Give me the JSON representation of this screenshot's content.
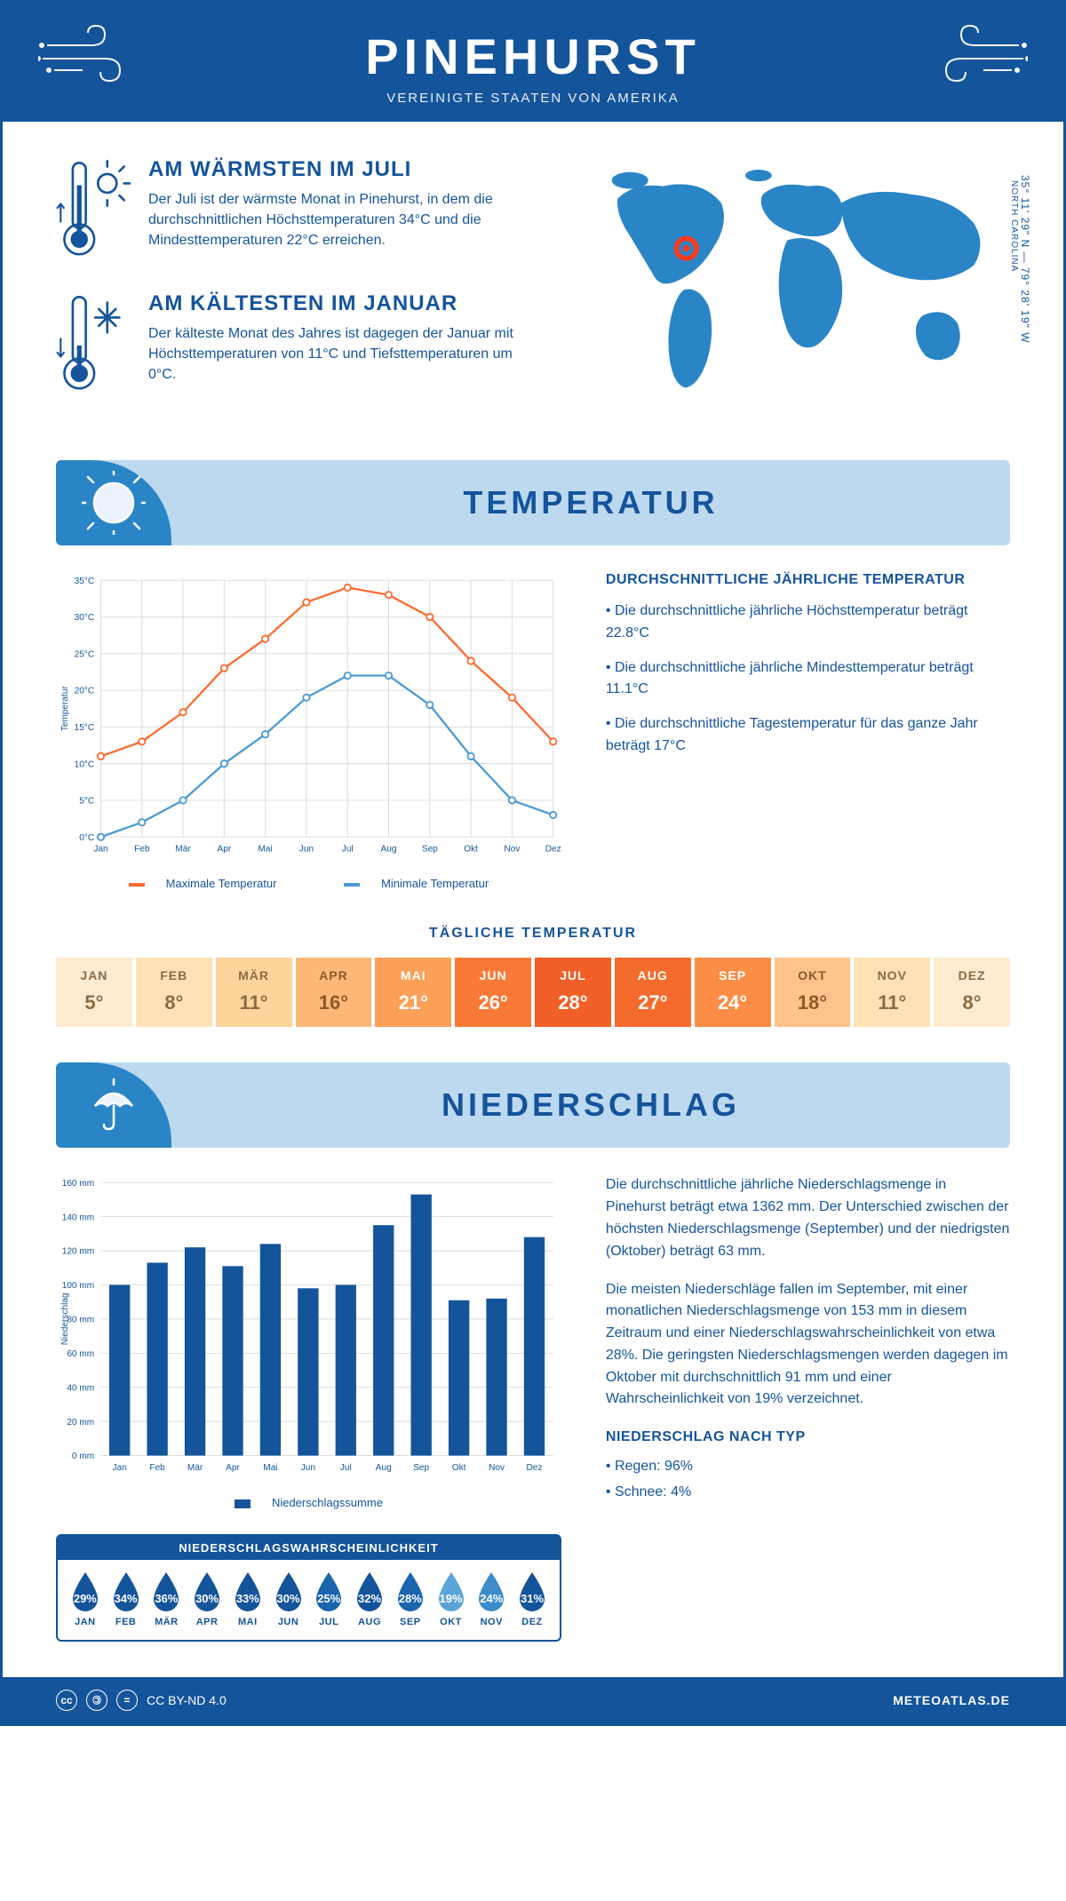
{
  "header": {
    "title": "PINEHURST",
    "subtitle": "VEREINIGTE STAATEN VON AMERIKA"
  },
  "colors": {
    "primary": "#14549b",
    "band_bg": "#bdd9f0",
    "band_icon_bg": "#2a85c6",
    "max_line": "#ff6a2f",
    "min_line": "#4a9ad6",
    "grid": "#d9d9d9",
    "axis_text": "#14549b"
  },
  "intro": {
    "warm": {
      "title": "AM WÄRMSTEN IM JULI",
      "text": "Der Juli ist der wärmste Monat in Pinehurst, in dem die durchschnittlichen Höchsttemperaturen 34°C und die Mindesttemperaturen 22°C erreichen."
    },
    "cold": {
      "title": "AM KÄLTESTEN IM JANUAR",
      "text": "Der kälteste Monat des Jahres ist dagegen der Januar mit Höchsttemperaturen von 11°C und Tiefsttemperaturen um 0°C."
    },
    "coords": "35° 11' 29\" N — 79° 28' 19\" W",
    "region": "NORTH CAROLINA"
  },
  "temperature_section": {
    "band_title": "TEMPERATUR",
    "desc_title": "DURCHSCHNITTLICHE JÄHRLICHE TEMPERATUR",
    "desc_1": "• Die durchschnittliche jährliche Höchsttemperatur beträgt 22.8°C",
    "desc_2": "• Die durchschnittliche jährliche Mindesttemperatur beträgt 11.1°C",
    "desc_3": "• Die durchschnittliche Tagestemperatur für das ganze Jahr beträgt 17°C",
    "chart": {
      "months": [
        "Jan",
        "Feb",
        "Mär",
        "Apr",
        "Mai",
        "Jun",
        "Jul",
        "Aug",
        "Sep",
        "Okt",
        "Nov",
        "Dez"
      ],
      "max": [
        11,
        13,
        17,
        23,
        27,
        32,
        34,
        33,
        30,
        24,
        19,
        13
      ],
      "min": [
        0,
        2,
        5,
        10,
        14,
        19,
        22,
        22,
        18,
        11,
        5,
        3
      ],
      "ylabel": "Temperatur",
      "ymin": 0,
      "ymax": 35,
      "ystep": 5,
      "legend_max": "Maximale Temperatur",
      "legend_min": "Minimale Temperatur"
    },
    "daily_title": "TÄGLICHE TEMPERATUR",
    "daily": {
      "months": [
        "JAN",
        "FEB",
        "MÄR",
        "APR",
        "MAI",
        "JUN",
        "JUL",
        "AUG",
        "SEP",
        "OKT",
        "NOV",
        "DEZ"
      ],
      "values": [
        "5°",
        "8°",
        "11°",
        "16°",
        "21°",
        "26°",
        "28°",
        "27°",
        "24°",
        "18°",
        "11°",
        "8°"
      ],
      "bg": [
        "#fdeccf",
        "#fde2b5",
        "#fed49d",
        "#fdb878",
        "#fc9f57",
        "#f97a37",
        "#f16028",
        "#f46c2d",
        "#fb8d47",
        "#fdc38a",
        "#fde2b5",
        "#fdeccf"
      ],
      "fg": [
        "#8b6b44",
        "#8b6b44",
        "#8b6b44",
        "#8b5a2c",
        "#ffffff",
        "#ffffff",
        "#ffffff",
        "#ffffff",
        "#ffffff",
        "#8b5a2c",
        "#8b6b44",
        "#8b6b44"
      ]
    }
  },
  "precip_section": {
    "band_title": "NIEDERSCHLAG",
    "chart": {
      "months": [
        "Jan",
        "Feb",
        "Mär",
        "Apr",
        "Mai",
        "Jun",
        "Jul",
        "Aug",
        "Sep",
        "Okt",
        "Nov",
        "Dez"
      ],
      "values": [
        100,
        113,
        122,
        111,
        124,
        98,
        100,
        135,
        153,
        91,
        92,
        128
      ],
      "ylabel": "Niederschlag",
      "ymin": 0,
      "ymax": 160,
      "ystep": 20,
      "legend": "Niederschlagssumme",
      "bar_color": "#14549b"
    },
    "text_1": "Die durchschnittliche jährliche Niederschlagsmenge in Pinehurst beträgt etwa 1362 mm. Der Unterschied zwischen der höchsten Niederschlagsmenge (September) und der niedrigsten (Oktober) beträgt 63 mm.",
    "text_2": "Die meisten Niederschläge fallen im September, mit einer monatlichen Niederschlagsmenge von 153 mm in diesem Zeitraum und einer Niederschlagswahrscheinlichkeit von etwa 28%. Die geringsten Niederschlagsmengen werden dagegen im Oktober mit durchschnittlich 91 mm und einer Wahrscheinlichkeit von 19% verzeichnet.",
    "type_title": "NIEDERSCHLAG NACH TYP",
    "type_1": "• Regen: 96%",
    "type_2": "• Schnee: 4%",
    "prob_title": "NIEDERSCHLAGSWAHRSCHEINLICHKEIT",
    "prob": {
      "months": [
        "JAN",
        "FEB",
        "MÄR",
        "APR",
        "MAI",
        "JUN",
        "JUL",
        "AUG",
        "SEP",
        "OKT",
        "NOV",
        "DEZ"
      ],
      "values": [
        "29%",
        "34%",
        "36%",
        "30%",
        "33%",
        "30%",
        "25%",
        "32%",
        "28%",
        "19%",
        "24%",
        "31%"
      ],
      "colors": [
        "#14549b",
        "#14549b",
        "#14549b",
        "#14549b",
        "#14549b",
        "#14549b",
        "#1b64ae",
        "#14549b",
        "#1b64ae",
        "#5ba4d7",
        "#3d8bc8",
        "#14549b"
      ]
    }
  },
  "footer": {
    "license": "CC BY-ND 4.0",
    "site": "METEOATLAS.DE"
  }
}
